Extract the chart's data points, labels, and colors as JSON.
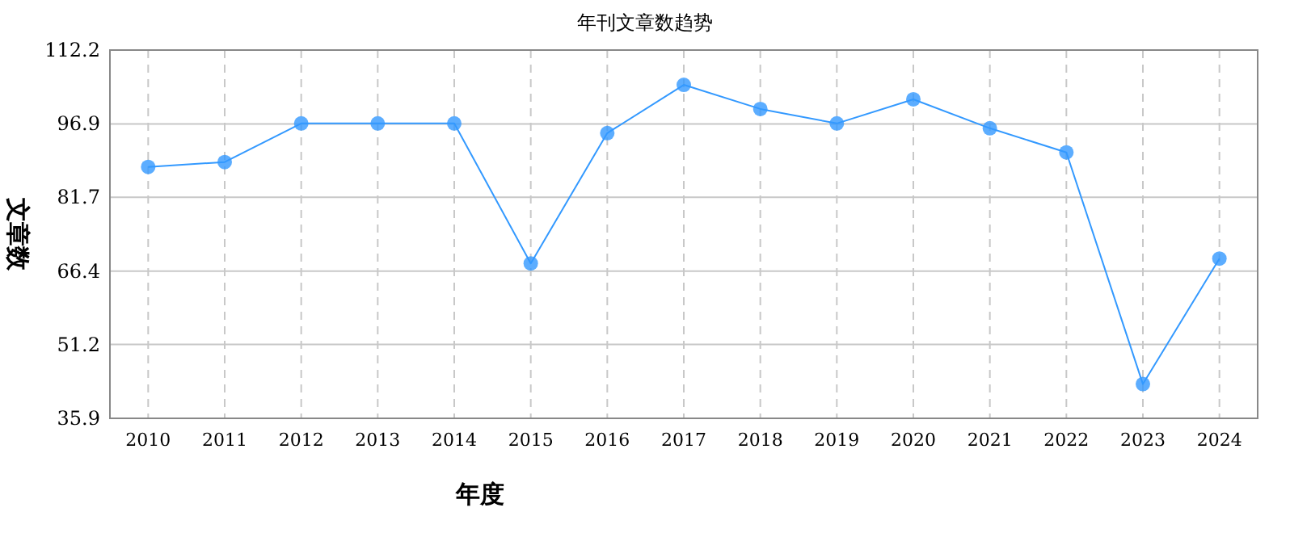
{
  "chart_data": {
    "type": "line",
    "title": "年刊文章数趋势",
    "xlabel": "年度",
    "ylabel": "文章数",
    "categories": [
      "2010",
      "2011",
      "2012",
      "2013",
      "2014",
      "2015",
      "2016",
      "2017",
      "2018",
      "2019",
      "2020",
      "2021",
      "2022",
      "2023",
      "2024"
    ],
    "series": [
      {
        "color": "#3399ff",
        "values": [
          88,
          89,
          97,
          97,
          97,
          68,
          95,
          105,
          100,
          97,
          102,
          96,
          91,
          43,
          69
        ]
      }
    ],
    "ylim": [
      35.9,
      112.2
    ],
    "yticks": [
      35.9,
      51.2,
      66.4,
      81.7,
      96.9,
      112.2
    ],
    "grid": true,
    "marker": "circle",
    "line_style": "solid"
  }
}
